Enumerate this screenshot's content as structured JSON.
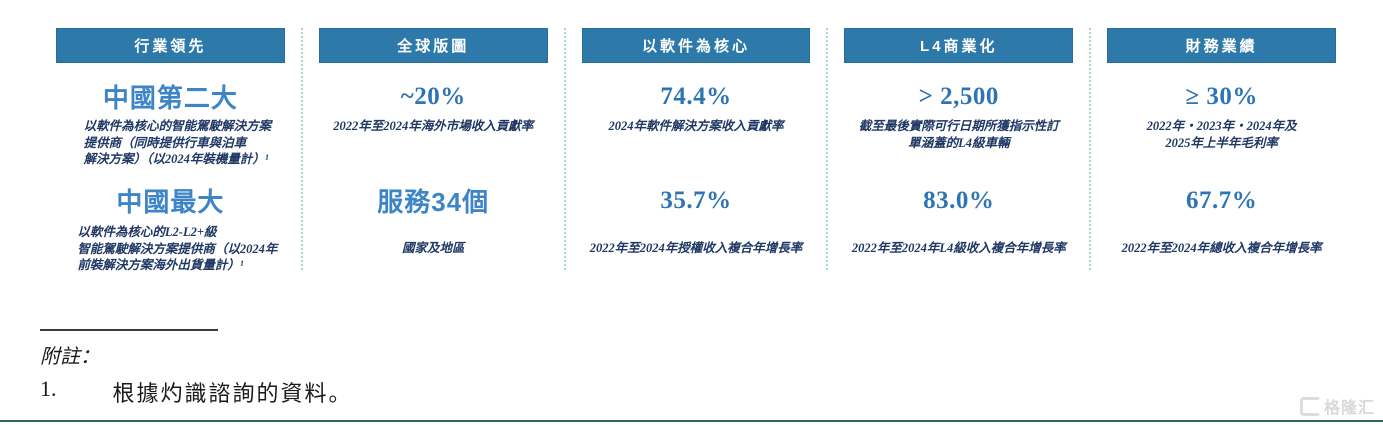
{
  "colors": {
    "header_bg": "#2d7aaa",
    "value_number_blue": "#2e74b5",
    "value_cjk_blue": "#3d85c6",
    "description_navy": "#1f3864",
    "separator_teal": "#a3d8d2",
    "bottom_line_green": "#2e6b55",
    "watermark_gray": "#d9d9d9"
  },
  "columns": [
    {
      "header": "行業領先",
      "items": [
        {
          "value": "中國第二大",
          "desc": "以軟件為核心的智能駕駛解決方案\n提供商（同時提供行車與泊車\n解決方案）（以2024年裝機量計）¹"
        },
        {
          "value": "中國最大",
          "desc": "以軟件為核心的L2-L2+級\n智能駕駛解決方案提供商（以2024年\n前裝解決方案海外出貨量計）¹"
        }
      ]
    },
    {
      "header": "全球版圖",
      "items": [
        {
          "value": "~20%",
          "desc": "2022年至2024年海外市場收入貢獻率"
        },
        {
          "value": "服務34個",
          "desc": "國家及地區"
        }
      ]
    },
    {
      "header": "以軟件為核心",
      "items": [
        {
          "value": "74.4%",
          "desc": "2024年軟件解決方案收入貢獻率"
        },
        {
          "value": "35.7%",
          "desc": "2022年至2024年授權收入複合年增長率"
        }
      ]
    },
    {
      "header": "L4商業化",
      "items": [
        {
          "value": "> 2,500",
          "desc": "截至最後實際可行日期所獲指示性訂\n單涵蓋的L4級車輛"
        },
        {
          "value": "83.0%",
          "desc": "2022年至2024年L4級收入複合年增長率"
        }
      ]
    },
    {
      "header": "財務業績",
      "items": [
        {
          "value": "≥ 30%",
          "desc": "2022年・2023年・2024年及\n2025年上半年毛利率"
        },
        {
          "value": "67.7%",
          "desc": "2022年至2024年總收入複合年增長率"
        }
      ]
    }
  ],
  "notes": {
    "label": "附註：",
    "items": [
      {
        "num": "1.",
        "text": "根據灼識諮詢的資料。"
      }
    ]
  },
  "watermark": {
    "text": "格隆汇"
  }
}
